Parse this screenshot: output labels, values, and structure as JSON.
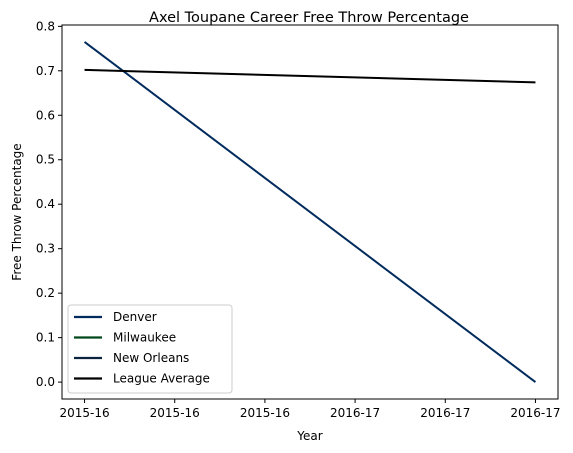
{
  "chart_data": {
    "type": "line",
    "title": "Axel Toupane Career Free Throw Percentage",
    "xlabel": "Year",
    "ylabel": "Free Throw Percentage",
    "x_tick_labels": [
      "2015-16",
      "2015-16",
      "2015-16",
      "2016-17",
      "2016-17",
      "2016-17"
    ],
    "x_positions": [
      0,
      1,
      2,
      3,
      4,
      5
    ],
    "xlim": [
      -0.25,
      5.25
    ],
    "ylim": [
      -0.038,
      0.803
    ],
    "y_ticks": [
      0.0,
      0.1,
      0.2,
      0.3,
      0.4,
      0.5,
      0.6,
      0.7,
      0.8
    ],
    "y_tick_labels": [
      "0.0",
      "0.1",
      "0.2",
      "0.3",
      "0.4",
      "0.5",
      "0.6",
      "0.7",
      "0.8"
    ],
    "grid": false,
    "legend_position": "lower-left",
    "series": [
      {
        "name": "Denver",
        "color": "#002B5C",
        "points": [
          [
            0,
            0.765
          ],
          [
            5,
            0.0
          ]
        ]
      },
      {
        "name": "Milwaukee",
        "color": "#00471B",
        "points": []
      },
      {
        "name": "New Orleans",
        "color": "#0C2340",
        "points": []
      },
      {
        "name": "League Average",
        "color": "#000000",
        "points": [
          [
            0,
            0.702
          ],
          [
            5,
            0.674
          ]
        ]
      }
    ]
  }
}
